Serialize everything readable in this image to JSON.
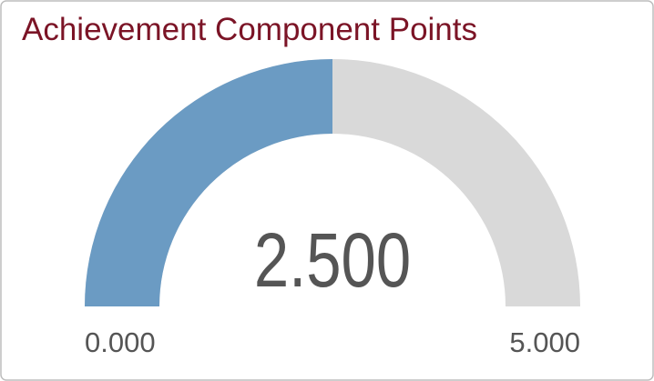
{
  "chart_data": {
    "type": "gauge",
    "title": "Achievement Component Points",
    "values": [
      2.5
    ],
    "value_labels": [
      "2.500"
    ],
    "ylim": [
      0,
      5
    ],
    "yticks": [
      {
        "value": 0,
        "label": "0.000"
      },
      {
        "value": 5,
        "label": "5.000"
      }
    ],
    "color": "#6b9bc3",
    "track_color": "#d9d9d9"
  }
}
